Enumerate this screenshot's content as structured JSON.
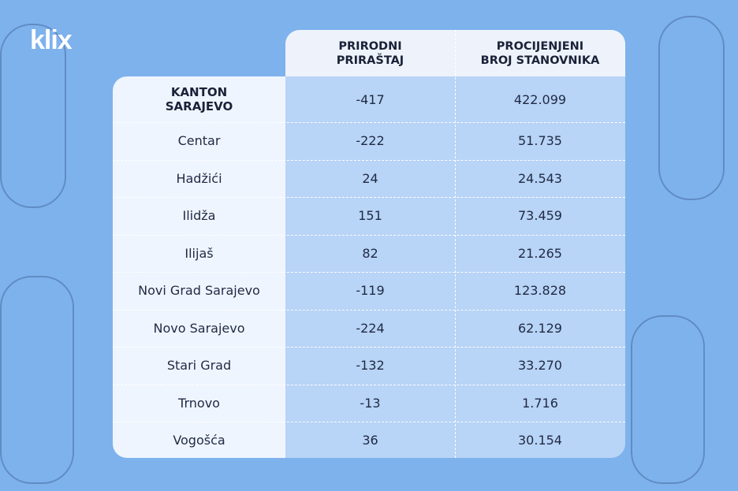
{
  "header": {
    "logo": "klix"
  },
  "table": {
    "columns": [
      [
        "PRIRODNI",
        "PRIRAŠTAJ"
      ],
      [
        "PROCIJENJENI",
        "BROJ STANOVNIKA"
      ]
    ],
    "total": {
      "name": [
        "KANTON",
        "SARAJEVO"
      ],
      "values": [
        "-417",
        "422.099"
      ]
    },
    "rows": [
      [
        "Centar",
        "-222",
        "51.735"
      ],
      [
        "Hadžići",
        "24",
        "24.543"
      ],
      [
        "Ilidža",
        "151",
        "73.459"
      ],
      [
        "Ilijaš",
        "82",
        "21.265"
      ],
      [
        "Novi Grad Sarajevo",
        "-119",
        "123.828"
      ],
      [
        "Novo Sarajevo",
        "-224",
        "62.129"
      ],
      [
        "Stari Grad",
        "-132",
        "33.270"
      ],
      [
        "Trnovo",
        "-13",
        "1.716"
      ],
      [
        "Vogošća",
        "36",
        "30.154"
      ]
    ]
  }
}
